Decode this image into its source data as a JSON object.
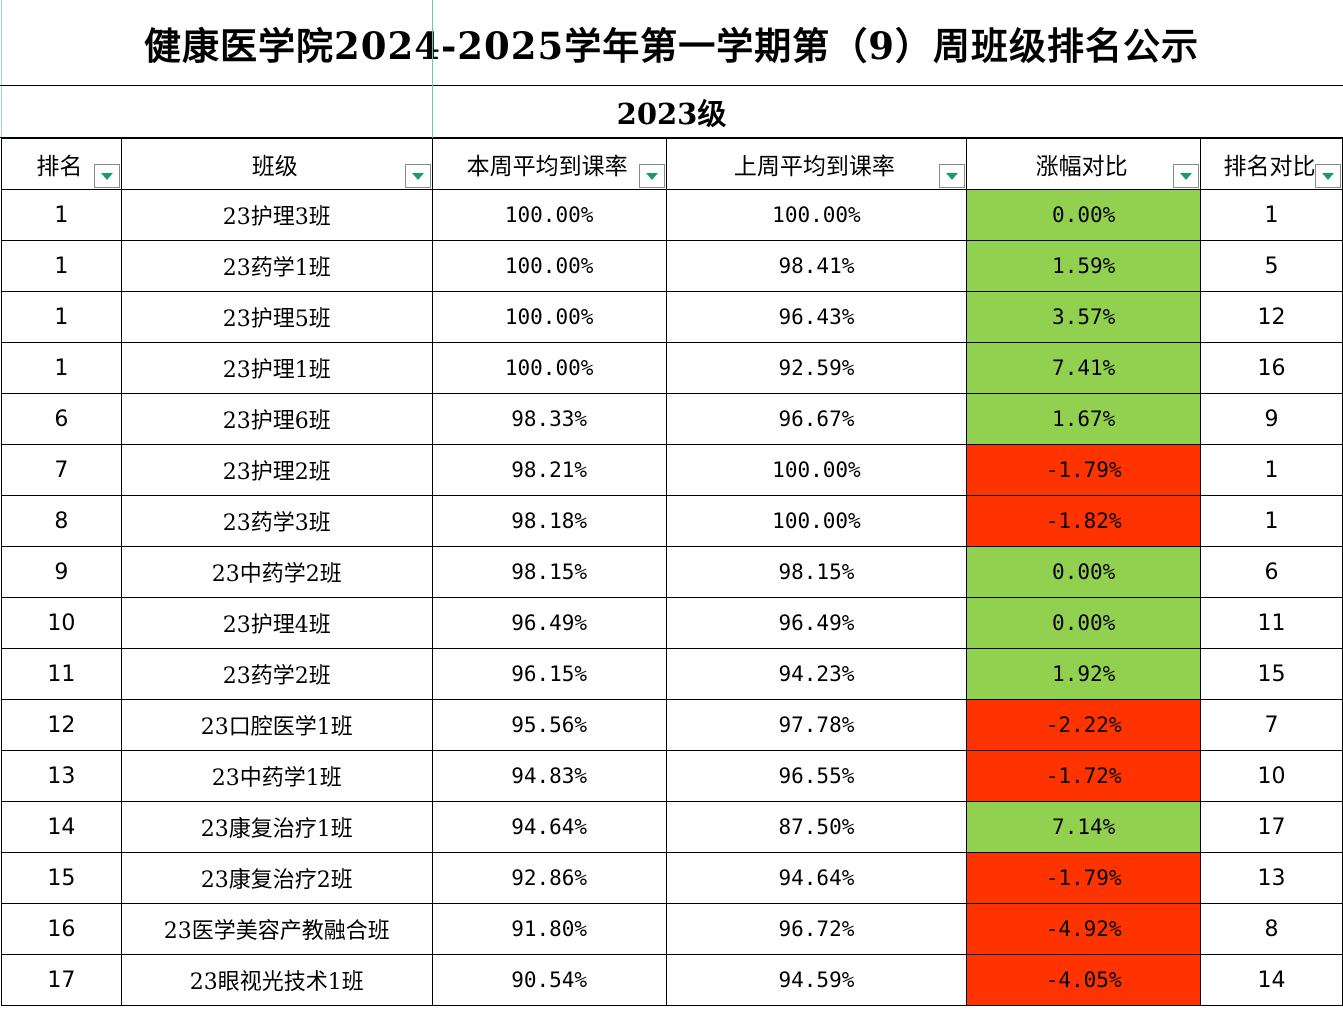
{
  "title": "健康医学院2024-2025学年第一学期第（9）周班级排名公示",
  "grade": "2023级",
  "headers": [
    "排名",
    "班级",
    "本周平均到课率",
    "上周平均到课率",
    "涨幅对比",
    "排名对比"
  ],
  "rows": [
    {
      "rank": "1",
      "class": "23护理3班",
      "this_week": "100.00%",
      "last_week": "100.00%",
      "change": "0.00%",
      "trend": "up",
      "prev_rank": "1"
    },
    {
      "rank": "1",
      "class": "23药学1班",
      "this_week": "100.00%",
      "last_week": "98.41%",
      "change": "1.59%",
      "trend": "up",
      "prev_rank": "5"
    },
    {
      "rank": "1",
      "class": "23护理5班",
      "this_week": "100.00%",
      "last_week": "96.43%",
      "change": "3.57%",
      "trend": "up",
      "prev_rank": "12"
    },
    {
      "rank": "1",
      "class": "23护理1班",
      "this_week": "100.00%",
      "last_week": "92.59%",
      "change": "7.41%",
      "trend": "up",
      "prev_rank": "16"
    },
    {
      "rank": "6",
      "class": "23护理6班",
      "this_week": "98.33%",
      "last_week": "96.67%",
      "change": "1.67%",
      "trend": "up",
      "prev_rank": "9"
    },
    {
      "rank": "7",
      "class": "23护理2班",
      "this_week": "98.21%",
      "last_week": "100.00%",
      "change": "-1.79%",
      "trend": "down",
      "prev_rank": "1"
    },
    {
      "rank": "8",
      "class": "23药学3班",
      "this_week": "98.18%",
      "last_week": "100.00%",
      "change": "-1.82%",
      "trend": "down",
      "prev_rank": "1"
    },
    {
      "rank": "9",
      "class": "23中药学2班",
      "this_week": "98.15%",
      "last_week": "98.15%",
      "change": "0.00%",
      "trend": "up",
      "prev_rank": "6"
    },
    {
      "rank": "10",
      "class": "23护理4班",
      "this_week": "96.49%",
      "last_week": "96.49%",
      "change": "0.00%",
      "trend": "up",
      "prev_rank": "11"
    },
    {
      "rank": "11",
      "class": "23药学2班",
      "this_week": "96.15%",
      "last_week": "94.23%",
      "change": "1.92%",
      "trend": "up",
      "prev_rank": "15"
    },
    {
      "rank": "12",
      "class": "23口腔医学1班",
      "this_week": "95.56%",
      "last_week": "97.78%",
      "change": "-2.22%",
      "trend": "down",
      "prev_rank": "7"
    },
    {
      "rank": "13",
      "class": "23中药学1班",
      "this_week": "94.83%",
      "last_week": "96.55%",
      "change": "-1.72%",
      "trend": "down",
      "prev_rank": "10"
    },
    {
      "rank": "14",
      "class": "23康复治疗1班",
      "this_week": "94.64%",
      "last_week": "87.50%",
      "change": "7.14%",
      "trend": "up",
      "prev_rank": "17"
    },
    {
      "rank": "15",
      "class": "23康复治疗2班",
      "this_week": "92.86%",
      "last_week": "94.64%",
      "change": "-1.79%",
      "trend": "down",
      "prev_rank": "13"
    },
    {
      "rank": "16",
      "class": "23医学美容产教融合班",
      "this_week": "91.80%",
      "last_week": "96.72%",
      "change": "-4.92%",
      "trend": "down",
      "prev_rank": "8"
    },
    {
      "rank": "17",
      "class": "23眼视光技术1班",
      "this_week": "90.54%",
      "last_week": "94.59%",
      "change": "-4.05%",
      "trend": "down",
      "prev_rank": "14"
    }
  ],
  "colors": {
    "up": "#92d050",
    "down": "#ff3300",
    "filter_arrow": "#1a9b6e"
  },
  "icons": {
    "filter": "filter-dropdown-icon"
  }
}
